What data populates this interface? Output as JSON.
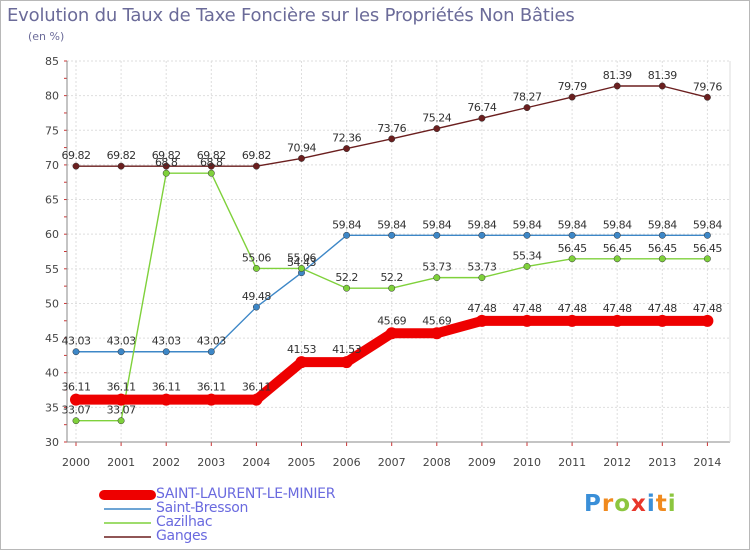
{
  "title": "Evolution du Taux de Taxe Foncière sur les Propriétés Non Bâties",
  "unit_label": "(en %)",
  "logo": {
    "text": "Proxiti",
    "letters": [
      {
        "ch": "P",
        "color": "#3a8fd8"
      },
      {
        "ch": "r",
        "color": "#f08a1e"
      },
      {
        "ch": "o",
        "color": "#8cc63f"
      },
      {
        "ch": "x",
        "color": "#e8372b"
      },
      {
        "ch": "i",
        "color": "#3a8fd8"
      },
      {
        "ch": "t",
        "color": "#f08a1e"
      },
      {
        "ch": "i",
        "color": "#8cc63f"
      }
    ]
  },
  "chart_data": {
    "type": "line",
    "title": "Evolution du Taux de Taxe Foncière sur les Propriétés Non Bâties",
    "ylabel": "(en %)",
    "xlabel": "",
    "ylim": [
      30,
      85
    ],
    "yticks": [
      30,
      35,
      40,
      45,
      50,
      55,
      60,
      65,
      70,
      75,
      80,
      85
    ],
    "grid": true,
    "legend_position": "bottom-left",
    "x": [
      "2000",
      "2001",
      "2002",
      "2003",
      "2004",
      "2005",
      "2006",
      "2007",
      "2008",
      "2009",
      "2010",
      "2011",
      "2012",
      "2013",
      "2014"
    ],
    "series": [
      {
        "name": "Ganges",
        "color": "#6b1f1f",
        "emphasis": false,
        "values": [
          69.82,
          69.82,
          69.82,
          69.82,
          69.82,
          70.94,
          72.36,
          73.76,
          75.24,
          76.74,
          78.27,
          79.79,
          81.39,
          81.39,
          79.76
        ],
        "labels": [
          "69.82",
          "69.82",
          "69.82",
          "69.82",
          "69.82",
          "70.94",
          "72.36",
          "73.76",
          "75.24",
          "76.74",
          "78.27",
          "79.79",
          "81.39",
          "81.39",
          "79.76"
        ]
      },
      {
        "name": "Saint-Bresson",
        "color": "#3d87c7",
        "emphasis": false,
        "values": [
          43.03,
          43.03,
          43.03,
          43.03,
          49.48,
          54.43,
          59.84,
          59.84,
          59.84,
          59.84,
          59.84,
          59.84,
          59.84,
          59.84,
          59.84
        ],
        "labels": [
          "43.03",
          "43.03",
          "43.03",
          "43.03",
          "49.48",
          "54.43",
          "59.84",
          "59.84",
          "59.84",
          "59.84",
          "59.84",
          "59.84",
          "59.84",
          "59.84",
          "59.84"
        ]
      },
      {
        "name": "Cazilhac",
        "color": "#7fd13b",
        "emphasis": false,
        "values": [
          33.07,
          33.07,
          68.8,
          68.8,
          55.06,
          55.06,
          52.2,
          52.2,
          53.73,
          53.73,
          55.34,
          56.45,
          56.45,
          56.45,
          56.45
        ],
        "labels": [
          "33.07",
          "33.07",
          "68.8",
          "68.8",
          "55.06",
          "55.06",
          "52.2",
          "52.2",
          "53.73",
          "53.73",
          "55.34",
          "56.45",
          "56.45",
          "56.45",
          "56.45"
        ]
      },
      {
        "name": "SAINT-LAURENT-LE-MINIER",
        "color": "#ee0000",
        "emphasis": true,
        "values": [
          36.11,
          36.11,
          36.11,
          36.11,
          36.11,
          41.53,
          41.53,
          45.69,
          45.69,
          47.48,
          47.48,
          47.48,
          47.48,
          47.48,
          47.48
        ],
        "labels": [
          "36.11",
          "36.11",
          "36.11",
          "36.11",
          "36.11",
          "41.53",
          "41.53",
          "45.69",
          "45.69",
          "47.48",
          "47.48",
          "47.48",
          "47.48",
          "47.48",
          "47.48"
        ]
      }
    ],
    "legend": [
      {
        "name": "SAINT-LAURENT-LE-MINIER",
        "color": "#ee0000",
        "text_color": "#6a6adf"
      },
      {
        "name": "Saint-Bresson",
        "color": "#3d87c7",
        "text_color": "#6a6adf"
      },
      {
        "name": "Cazilhac",
        "color": "#7fd13b",
        "text_color": "#6a6adf"
      },
      {
        "name": "Ganges",
        "color": "#6b1f1f",
        "text_color": "#6a6adf"
      }
    ]
  }
}
